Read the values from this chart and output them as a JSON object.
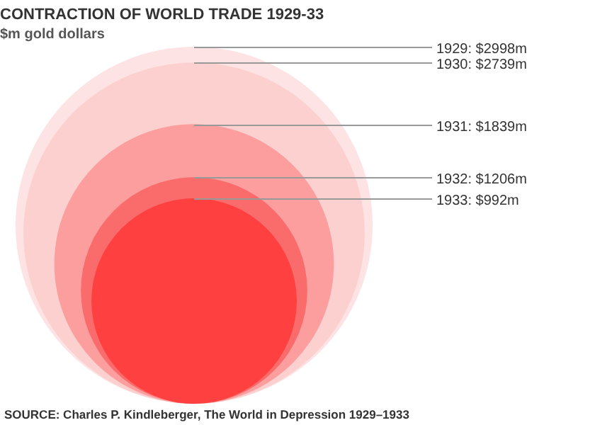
{
  "chart_data": {
    "type": "other",
    "title": "CONTRACTION OF WORLD TRADE 1929-33",
    "subtitle": "$m gold dollars",
    "values": [
      2998,
      2739,
      1839,
      1206,
      992
    ],
    "value_labels": [
      "1929: $2998m",
      "1930: $2739m",
      "1931: $1839m",
      "1932: $1206m",
      "1933: $992m"
    ],
    "colors": [
      "#fde3e3",
      "#fdd0d0",
      "#fc9e9e",
      "#fa6c6c",
      "#ff4040"
    ],
    "annotations": [
      "SOURCE: Charles P. Kindleberger, The World in Depression 1929–1933"
    ]
  }
}
